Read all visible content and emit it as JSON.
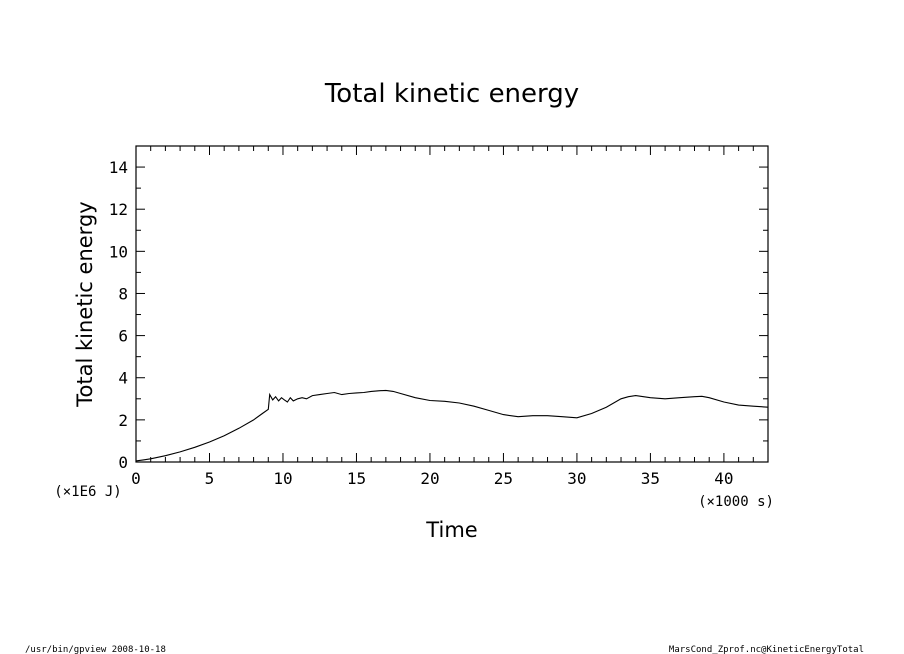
{
  "chart_data": {
    "type": "line",
    "title": "Total kinetic energy",
    "xlabel": "Time",
    "ylabel": "Total kinetic energy",
    "x_unit": "(×1000 s)",
    "y_unit": "(×1E6 J)",
    "xlim": [
      0,
      43
    ],
    "ylim": [
      0,
      15
    ],
    "xticks": [
      0,
      5,
      10,
      15,
      20,
      25,
      30,
      35,
      40
    ],
    "yticks": [
      0,
      2,
      4,
      6,
      8,
      10,
      12,
      14
    ],
    "grid": false,
    "x": [
      0,
      0.5,
      1,
      2,
      3,
      4,
      5,
      6,
      7,
      8,
      8.6,
      9.0,
      9.1,
      9.3,
      9.5,
      9.7,
      9.9,
      10.1,
      10.3,
      10.5,
      10.7,
      11.0,
      11.3,
      11.6,
      12,
      12.5,
      13,
      13.5,
      14,
      14.5,
      15,
      15.5,
      16,
      16.5,
      17,
      17.5,
      18,
      19,
      20,
      21,
      22,
      23,
      24,
      25,
      26,
      27,
      28,
      29,
      30,
      31,
      32,
      33,
      33.5,
      34,
      35,
      36,
      37,
      38,
      38.5,
      39,
      40,
      41,
      42,
      43
    ],
    "y": [
      0.05,
      0.1,
      0.15,
      0.3,
      0.48,
      0.7,
      0.95,
      1.25,
      1.6,
      2.0,
      2.3,
      2.5,
      3.2,
      2.95,
      3.1,
      2.9,
      3.05,
      2.95,
      2.85,
      3.05,
      2.9,
      3.0,
      3.05,
      3.0,
      3.15,
      3.2,
      3.25,
      3.3,
      3.2,
      3.25,
      3.28,
      3.3,
      3.35,
      3.38,
      3.4,
      3.35,
      3.25,
      3.05,
      2.92,
      2.88,
      2.8,
      2.65,
      2.45,
      2.25,
      2.15,
      2.2,
      2.2,
      2.15,
      2.1,
      2.3,
      2.6,
      3.0,
      3.1,
      3.15,
      3.05,
      3.0,
      3.05,
      3.1,
      3.12,
      3.05,
      2.85,
      2.7,
      2.65,
      2.6
    ]
  },
  "footer": {
    "left": "/usr/bin/gpview  2008-10-18",
    "right": "MarsCond_Zprof.nc@KineticEnergyTotal"
  }
}
